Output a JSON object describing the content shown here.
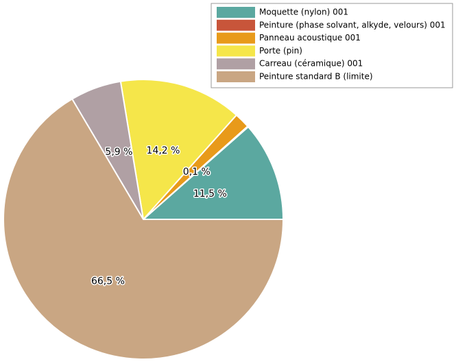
{
  "chart_data": {
    "type": "pie",
    "categories": [
      "Moquette (nylon) 001",
      "Peinture (phase solvant, alkyde, velours) 001",
      "Panneau acoustique 001",
      "Porte (pin)",
      "Carreau (céramique) 001",
      "Peinture standard B (limite)"
    ],
    "values": [
      11.5,
      0.1,
      1.8,
      14.2,
      5.9,
      66.5
    ],
    "value_labels": [
      "11,5 %",
      "0,1 %",
      null,
      "14,2 %",
      "5,9 %",
      "66,5 %"
    ],
    "colors": [
      "#5ba8a0",
      "#c8553a",
      "#e89a1a",
      "#f5e64a",
      "#b0a0a4",
      "#c9a683"
    ],
    "legend": "top-right"
  }
}
